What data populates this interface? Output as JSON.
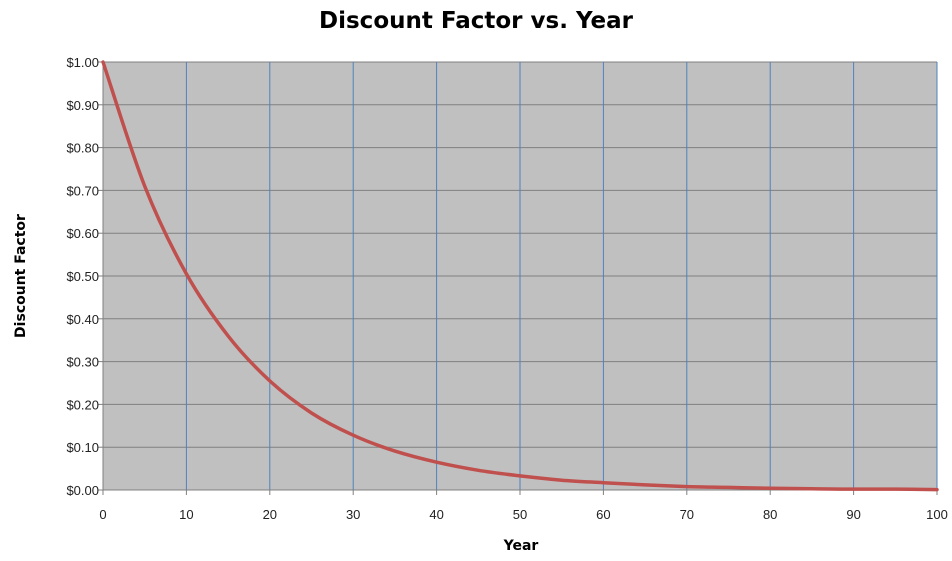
{
  "chart_data": {
    "type": "line",
    "title": "Discount Factor vs. Year",
    "xlabel": "Year",
    "ylabel": "Discount Factor",
    "xlim": [
      0,
      100
    ],
    "ylim": [
      0,
      1
    ],
    "x_ticks": [
      "0",
      "10",
      "20",
      "30",
      "40",
      "50",
      "60",
      "70",
      "80",
      "90",
      "100"
    ],
    "y_ticks": [
      "$0.00",
      "$0.10",
      "$0.20",
      "$0.30",
      "$0.40",
      "$0.50",
      "$0.60",
      "$0.70",
      "$0.80",
      "$0.90",
      "$1.00"
    ],
    "grid": "on",
    "legend": "none",
    "series": [
      {
        "color": "#c0504d",
        "x": [
          0,
          5,
          10,
          15,
          20,
          25,
          30,
          35,
          40,
          45,
          50,
          55,
          60,
          65,
          70,
          75,
          80,
          85,
          90,
          95,
          100
        ],
        "y": [
          1.0,
          0.71,
          0.505,
          0.36,
          0.255,
          0.18,
          0.128,
          0.091,
          0.065,
          0.046,
          0.033,
          0.023,
          0.017,
          0.012,
          0.008,
          0.006,
          0.004,
          0.003,
          0.002,
          0.002,
          0.001
        ]
      }
    ],
    "colors": {
      "plot_background": "#c0c0c0",
      "vertical_grid": "#4f81bd",
      "horizontal_grid": "#808080"
    }
  }
}
